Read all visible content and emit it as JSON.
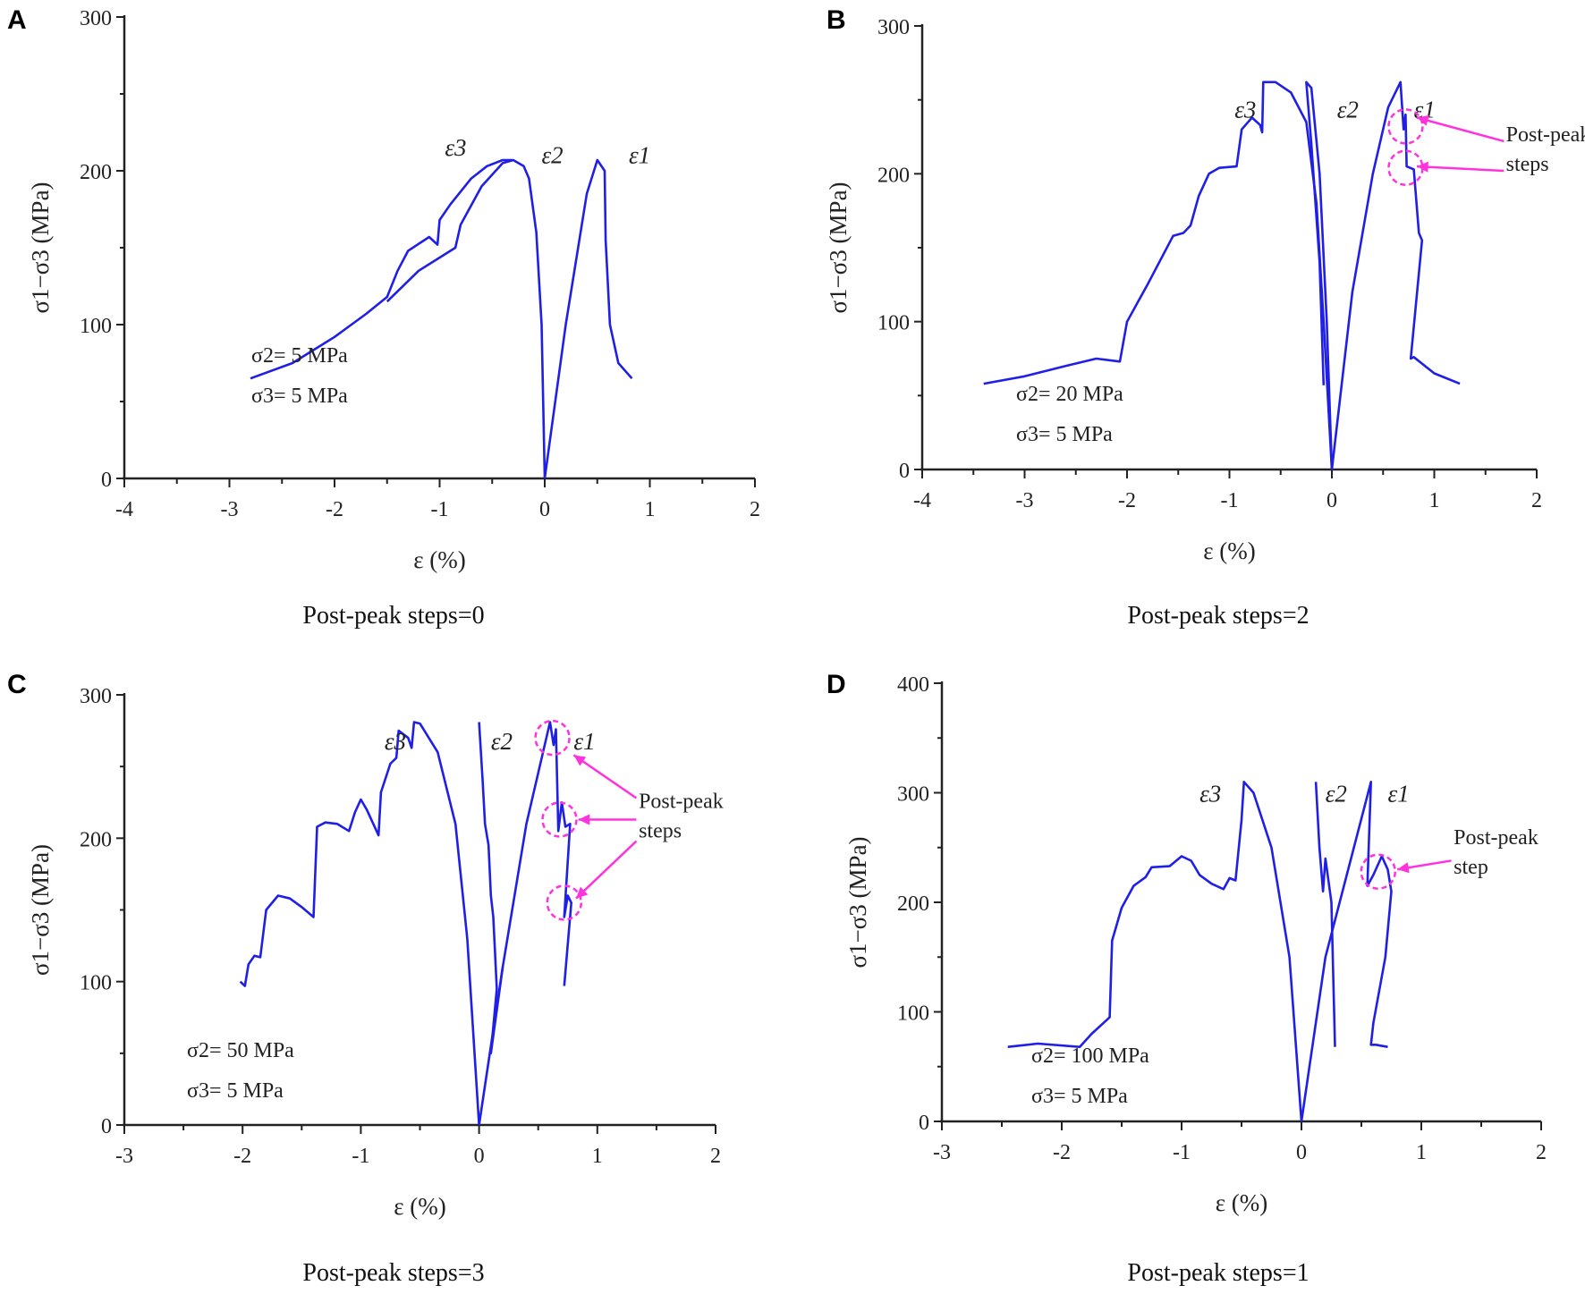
{
  "colors": {
    "curve": "#1f1fe6",
    "highlight": "#ff33dd",
    "axis": "#222222"
  },
  "chart_data": [
    {
      "panel": "A",
      "type": "line",
      "xlabel": "ε (%)",
      "ylabel": "σ1−σ3 (MPa)",
      "xlim": [
        -4,
        2
      ],
      "ylim": [
        0,
        300
      ],
      "xticks": [
        "-4",
        "-3",
        "-2",
        "-1",
        "0",
        "1",
        "2"
      ],
      "yticks": [
        "0",
        "100",
        "200",
        "300"
      ],
      "conditions": [
        "σ2= 5 MPa",
        "σ3= 5 MPa"
      ],
      "caption": "Post-peak steps=0",
      "series": [
        {
          "name": "ε3",
          "points": [
            [
              -2.8,
              65
            ],
            [
              -2.4,
              75
            ],
            [
              -2,
              92
            ],
            [
              -1.7,
              107
            ],
            [
              -1.5,
              118
            ],
            [
              -1.4,
              135
            ],
            [
              -1.3,
              148
            ],
            [
              -1.1,
              157
            ],
            [
              -1.02,
              152
            ],
            [
              -1,
              168
            ],
            [
              -0.9,
              178
            ],
            [
              -0.7,
              195
            ],
            [
              -0.55,
              203
            ],
            [
              -0.4,
              207
            ],
            [
              -0.3,
              207
            ],
            [
              -0.4,
              205
            ],
            [
              -0.6,
              190
            ],
            [
              -0.8,
              165
            ],
            [
              -0.85,
              150
            ],
            [
              -1.2,
              135
            ],
            [
              -1.5,
              115
            ]
          ]
        },
        {
          "name": "ε2",
          "points": [
            [
              -0.3,
              207
            ],
            [
              -0.2,
              203
            ],
            [
              -0.15,
              195
            ],
            [
              -0.08,
              160
            ],
            [
              -0.03,
              100
            ],
            [
              0,
              0
            ]
          ]
        },
        {
          "name": "ε1",
          "points": [
            [
              0,
              0
            ],
            [
              0.2,
              100
            ],
            [
              0.4,
              185
            ],
            [
              0.5,
              207
            ],
            [
              0.57,
              200
            ],
            [
              0.58,
              155
            ],
            [
              0.62,
              100
            ],
            [
              0.7,
              75
            ],
            [
              0.83,
              65
            ]
          ]
        }
      ],
      "curve_labels": [
        {
          "text": "ε3",
          "x": -0.95,
          "y": 210
        },
        {
          "text": "ε2",
          "x": -0.03,
          "y": 205
        },
        {
          "text": "ε1",
          "x": 0.8,
          "y": 205
        }
      ],
      "highlights": [],
      "callout": []
    },
    {
      "panel": "B",
      "type": "line",
      "xlabel": "ε (%)",
      "ylabel": "σ1−σ3 (MPa)",
      "xlim": [
        -4,
        2
      ],
      "ylim": [
        0,
        300
      ],
      "xticks": [
        "-4",
        "-3",
        "-2",
        "-1",
        "0",
        "1",
        "2"
      ],
      "yticks": [
        "0",
        "100",
        "200",
        "300"
      ],
      "conditions": [
        "σ2= 20 MPa",
        "σ3= 5 MPa"
      ],
      "caption": "Post-peak steps=2",
      "series": [
        {
          "name": "ε3",
          "points": [
            [
              -3.4,
              58
            ],
            [
              -3,
              63
            ],
            [
              -2.6,
              70
            ],
            [
              -2.3,
              75
            ],
            [
              -2.07,
              73
            ],
            [
              -2,
              100
            ],
            [
              -1.8,
              125
            ],
            [
              -1.55,
              158
            ],
            [
              -1.45,
              160
            ],
            [
              -1.38,
              165
            ],
            [
              -1.3,
              185
            ],
            [
              -1.2,
              200
            ],
            [
              -1.1,
              204
            ],
            [
              -0.93,
              205
            ],
            [
              -0.88,
              230
            ],
            [
              -0.78,
              238
            ],
            [
              -0.7,
              233
            ],
            [
              -0.68,
              228
            ],
            [
              -0.67,
              262
            ],
            [
              -0.55,
              262
            ],
            [
              -0.4,
              255
            ],
            [
              -0.25,
              235
            ],
            [
              -0.15,
              180
            ],
            [
              -0.08,
              100
            ],
            [
              0,
              0
            ]
          ]
        },
        {
          "name": "ε2",
          "points": [
            [
              -0.08,
              57
            ],
            [
              -0.12,
              140
            ],
            [
              -0.2,
              220
            ],
            [
              -0.25,
              262
            ],
            [
              -0.2,
              258
            ],
            [
              -0.12,
              200
            ],
            [
              -0.05,
              100
            ],
            [
              0,
              0
            ]
          ]
        },
        {
          "name": "ε1",
          "points": [
            [
              0,
              0
            ],
            [
              0.2,
              120
            ],
            [
              0.4,
              200
            ],
            [
              0.55,
              245
            ],
            [
              0.67,
              262
            ],
            [
              0.7,
              230
            ],
            [
              0.72,
              240
            ],
            [
              0.73,
              205
            ],
            [
              0.8,
              203
            ],
            [
              0.85,
              160
            ],
            [
              0.88,
              155
            ],
            [
              0.77,
              75
            ],
            [
              0.8,
              76
            ],
            [
              1,
              65
            ],
            [
              1.25,
              58
            ]
          ]
        }
      ],
      "curve_labels": [
        {
          "text": "ε3",
          "x": -0.95,
          "y": 238
        },
        {
          "text": "ε2",
          "x": 0.05,
          "y": 238
        },
        {
          "text": "ε1",
          "x": 0.8,
          "y": 238
        }
      ],
      "highlights": [
        {
          "x": 0.72,
          "y": 232
        },
        {
          "x": 0.72,
          "y": 204
        }
      ],
      "callout": {
        "lines": [
          "Post-peak",
          "steps"
        ],
        "x": 1.7,
        "y": 222,
        "arrows": [
          [
            1.68,
            222,
            0.83,
            238
          ],
          [
            1.68,
            202,
            0.83,
            205
          ]
        ]
      }
    },
    {
      "panel": "C",
      "type": "line",
      "xlabel": "ε (%)",
      "ylabel": "σ1−σ3 (MPa)",
      "xlim": [
        -3,
        2
      ],
      "ylim": [
        0,
        300
      ],
      "xticks": [
        "-3",
        "-2",
        "-1",
        "0",
        "1",
        "2"
      ],
      "yticks": [
        "0",
        "100",
        "200",
        "300"
      ],
      "conditions": [
        "σ2= 50 MPa",
        "σ3= 5 MPa"
      ],
      "caption": "Post-peak steps=3",
      "series": [
        {
          "name": "ε3",
          "points": [
            [
              -2.02,
              100
            ],
            [
              -1.98,
              97
            ],
            [
              -1.95,
              112
            ],
            [
              -1.9,
              118
            ],
            [
              -1.85,
              117
            ],
            [
              -1.8,
              150
            ],
            [
              -1.7,
              160
            ],
            [
              -1.6,
              158
            ],
            [
              -1.5,
              152
            ],
            [
              -1.4,
              145
            ],
            [
              -1.37,
              208
            ],
            [
              -1.3,
              211
            ],
            [
              -1.2,
              210
            ],
            [
              -1.1,
              205
            ],
            [
              -1.05,
              218
            ],
            [
              -1,
              227
            ],
            [
              -0.95,
              220
            ],
            [
              -0.85,
              202
            ],
            [
              -0.83,
              232
            ],
            [
              -0.75,
              252
            ],
            [
              -0.7,
              256
            ],
            [
              -0.68,
              275
            ],
            [
              -0.6,
              270
            ],
            [
              -0.57,
              263
            ],
            [
              -0.55,
              281
            ],
            [
              -0.5,
              280
            ],
            [
              -0.35,
              260
            ],
            [
              -0.2,
              210
            ],
            [
              -0.1,
              130
            ],
            [
              0,
              0
            ]
          ]
        },
        {
          "name": "ε2",
          "points": [
            [
              0,
              281
            ],
            [
              0.03,
              240
            ],
            [
              0.05,
              210
            ],
            [
              0.08,
              195
            ],
            [
              0.1,
              160
            ],
            [
              0.12,
              145
            ],
            [
              0.15,
              95
            ],
            [
              0.1,
              50
            ],
            [
              0.2,
              110
            ]
          ]
        },
        {
          "name": "ε1",
          "points": [
            [
              0,
              0
            ],
            [
              0.2,
              110
            ],
            [
              0.4,
              210
            ],
            [
              0.6,
              281
            ],
            [
              0.63,
              265
            ],
            [
              0.65,
              276
            ],
            [
              0.67,
              205
            ],
            [
              0.7,
              225
            ],
            [
              0.73,
              208
            ],
            [
              0.77,
              210
            ],
            [
              0.72,
              145
            ],
            [
              0.75,
              160
            ],
            [
              0.78,
              155
            ],
            [
              0.72,
              97
            ]
          ]
        }
      ],
      "curve_labels": [
        {
          "text": "ε3",
          "x": -0.8,
          "y": 262
        },
        {
          "text": "ε2",
          "x": 0.1,
          "y": 262
        },
        {
          "text": "ε1",
          "x": 0.8,
          "y": 262
        }
      ],
      "highlights": [
        {
          "x": 0.62,
          "y": 270
        },
        {
          "x": 0.68,
          "y": 213
        },
        {
          "x": 0.72,
          "y": 155
        }
      ],
      "callout": {
        "lines": [
          "Post-peak",
          "steps"
        ],
        "x": 1.35,
        "y": 221,
        "arrows": [
          [
            1.33,
            228,
            0.8,
            258
          ],
          [
            1.33,
            213,
            0.84,
            213
          ],
          [
            1.33,
            198,
            0.82,
            158
          ]
        ]
      }
    },
    {
      "panel": "D",
      "type": "line",
      "xlabel": "ε (%)",
      "ylabel": "σ1−σ3 (MPa)",
      "xlim": [
        -3,
        2
      ],
      "ylim": [
        0,
        400
      ],
      "xticks": [
        "-3",
        "-2",
        "-1",
        "0",
        "1",
        "2"
      ],
      "yticks": [
        "0",
        "100",
        "200",
        "300",
        "400"
      ],
      "conditions": [
        "σ2= 100 MPa",
        "σ3= 5 MPa"
      ],
      "caption": "Post-peak steps=1",
      "series": [
        {
          "name": "ε3",
          "points": [
            [
              -2.45,
              68
            ],
            [
              -2.2,
              71
            ],
            [
              -1.85,
              68
            ],
            [
              -1.75,
              80
            ],
            [
              -1.6,
              95
            ],
            [
              -1.58,
              165
            ],
            [
              -1.5,
              195
            ],
            [
              -1.4,
              215
            ],
            [
              -1.3,
              223
            ],
            [
              -1.25,
              232
            ],
            [
              -1.1,
              233
            ],
            [
              -1,
              242
            ],
            [
              -0.92,
              238
            ],
            [
              -0.85,
              225
            ],
            [
              -0.75,
              217
            ],
            [
              -0.65,
              212
            ],
            [
              -0.6,
              222
            ],
            [
              -0.55,
              220
            ],
            [
              -0.5,
              275
            ],
            [
              -0.48,
              310
            ],
            [
              -0.4,
              300
            ],
            [
              -0.25,
              250
            ],
            [
              -0.1,
              150
            ],
            [
              0,
              0
            ]
          ]
        },
        {
          "name": "ε2",
          "points": [
            [
              0.12,
              310
            ],
            [
              0.15,
              250
            ],
            [
              0.18,
              210
            ],
            [
              0.2,
              240
            ],
            [
              0.25,
              200
            ],
            [
              0.28,
              68
            ]
          ]
        },
        {
          "name": "ε1",
          "points": [
            [
              0,
              0
            ],
            [
              0.2,
              150
            ],
            [
              0.58,
              310
            ],
            [
              0.55,
              215
            ],
            [
              0.6,
              225
            ],
            [
              0.67,
              242
            ],
            [
              0.72,
              230
            ],
            [
              0.75,
              210
            ],
            [
              0.7,
              150
            ],
            [
              0.6,
              90
            ],
            [
              0.58,
              70
            ],
            [
              0.62,
              70
            ],
            [
              0.72,
              68
            ]
          ]
        }
      ],
      "curve_labels": [
        {
          "text": "ε3",
          "x": -0.85,
          "y": 292
        },
        {
          "text": "ε2",
          "x": 0.2,
          "y": 292
        },
        {
          "text": "ε1",
          "x": 0.72,
          "y": 292
        }
      ],
      "highlights": [
        {
          "x": 0.64,
          "y": 228
        }
      ],
      "callout": {
        "lines": [
          "Post-peak",
          "step"
        ],
        "x": 1.27,
        "y": 253,
        "arrows": [
          [
            1.25,
            238,
            0.8,
            230
          ]
        ]
      }
    }
  ]
}
